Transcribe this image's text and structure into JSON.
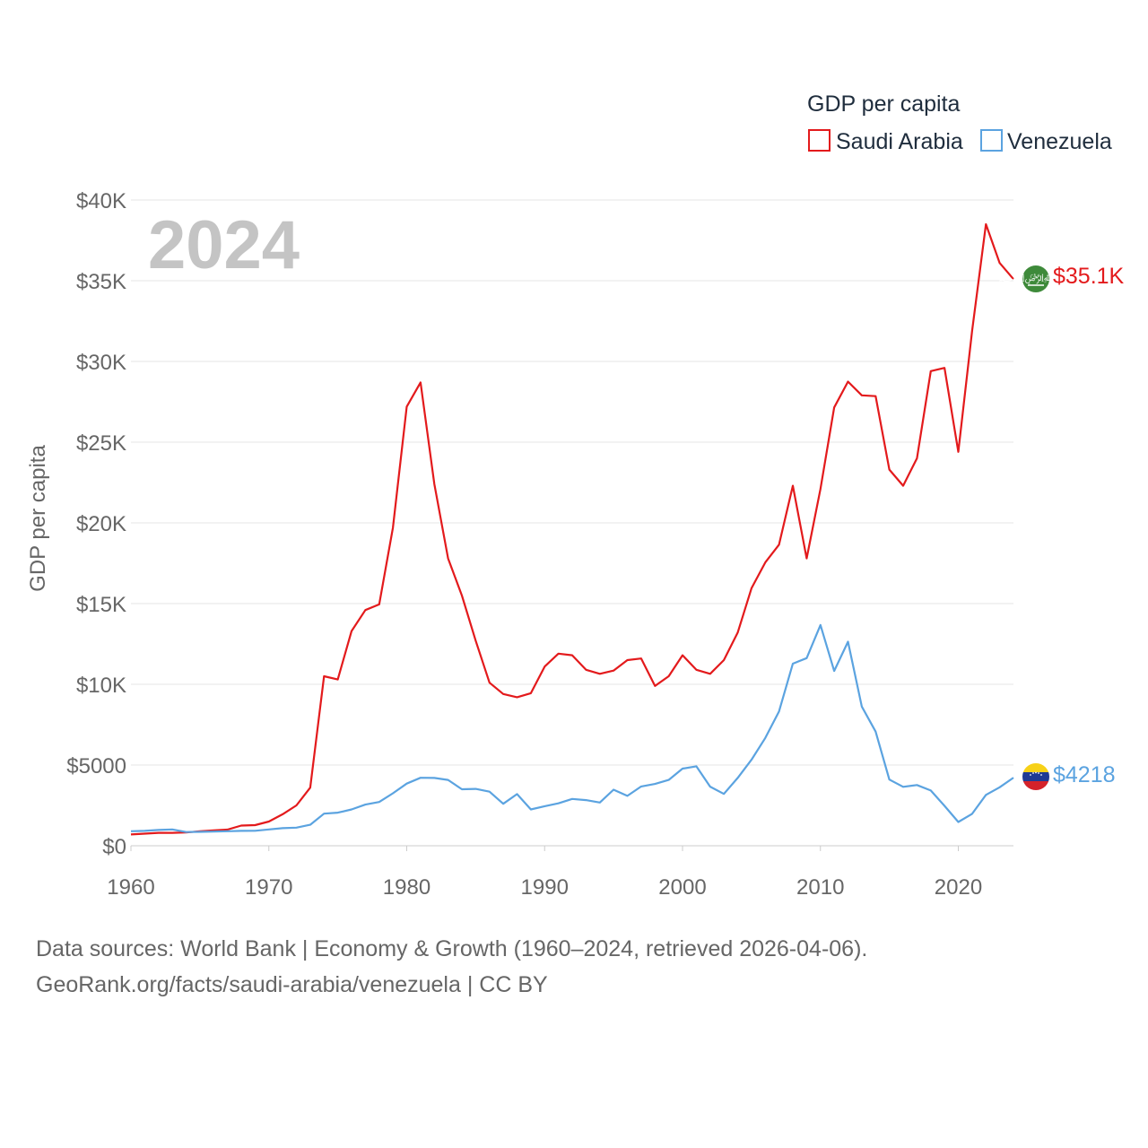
{
  "chart_data": {
    "type": "line",
    "title": "GDP per capita",
    "year_label": "2024",
    "ylabel": "GDP per capita",
    "xlabel": "",
    "xlim": [
      1960,
      2024
    ],
    "ylim": [
      0,
      40000
    ],
    "xticks": [
      1960,
      1970,
      1980,
      1990,
      2000,
      2010,
      2020
    ],
    "xtick_labels": [
      "1960",
      "1970",
      "1980",
      "1990",
      "2000",
      "2010",
      "2020"
    ],
    "yticks": [
      0,
      5000,
      10000,
      15000,
      20000,
      25000,
      30000,
      35000,
      40000
    ],
    "ytick_labels": [
      "$0",
      "$5000",
      "$10K",
      "$15K",
      "$20K",
      "$25K",
      "$30K",
      "$35K",
      "$40K"
    ],
    "grid": true,
    "legend_position": "top-right",
    "x": [
      1960,
      1961,
      1962,
      1963,
      1964,
      1965,
      1966,
      1967,
      1968,
      1969,
      1970,
      1971,
      1972,
      1973,
      1974,
      1975,
      1976,
      1977,
      1978,
      1979,
      1980,
      1981,
      1982,
      1983,
      1984,
      1985,
      1986,
      1987,
      1988,
      1989,
      1990,
      1991,
      1992,
      1993,
      1994,
      1995,
      1996,
      1997,
      1998,
      1999,
      2000,
      2001,
      2002,
      2003,
      2004,
      2005,
      2006,
      2007,
      2008,
      2009,
      2010,
      2011,
      2012,
      2013,
      2014,
      2015,
      2016,
      2017,
      2018,
      2019,
      2020,
      2021,
      2022,
      2023,
      2024
    ],
    "series": [
      {
        "name": "Saudi Arabia",
        "color": "#e31a1c",
        "end_label": "$35.1K",
        "values": [
          700,
          750,
          800,
          800,
          820,
          900,
          950,
          1000,
          1250,
          1280,
          1500,
          1950,
          2500,
          3600,
          10500,
          10300,
          13300,
          14600,
          14950,
          19700,
          27200,
          28700,
          22400,
          17800,
          15500,
          12700,
          10100,
          9400,
          9200,
          9450,
          11100,
          11900,
          11800,
          10900,
          10650,
          10850,
          11500,
          11600,
          9900,
          10500,
          11800,
          10900,
          10650,
          11500,
          13200,
          15950,
          17550,
          18650,
          22300,
          17800,
          22100,
          27150,
          28750,
          27900,
          27850,
          23300,
          22300,
          24000,
          29400,
          29600,
          24400,
          31900,
          38500,
          36100,
          35100
        ]
      },
      {
        "name": "Venezuela",
        "color": "#5ba3e0",
        "end_label": "$4218",
        "values": [
          900,
          920,
          980,
          1010,
          850,
          860,
          880,
          900,
          920,
          930,
          1010,
          1090,
          1120,
          1300,
          1990,
          2050,
          2250,
          2550,
          2710,
          3250,
          3850,
          4210,
          4200,
          4080,
          3500,
          3520,
          3350,
          2600,
          3200,
          2250,
          2450,
          2630,
          2900,
          2830,
          2680,
          3470,
          3090,
          3670,
          3830,
          4080,
          4780,
          4920,
          3660,
          3210,
          4200,
          5330,
          6680,
          8320,
          11280,
          11620,
          13670,
          10830,
          12640,
          8620,
          7070,
          4100,
          3650,
          3760,
          3420,
          2470,
          1470,
          1980,
          3150,
          3620,
          4218
        ]
      }
    ]
  },
  "footer": {
    "line1": "Data sources: World Bank | Economy & Growth (1960–2024, retrieved 2026-04-06).",
    "line2": "GeoRank.org/facts/saudi-arabia/venezuela | CC BY"
  }
}
